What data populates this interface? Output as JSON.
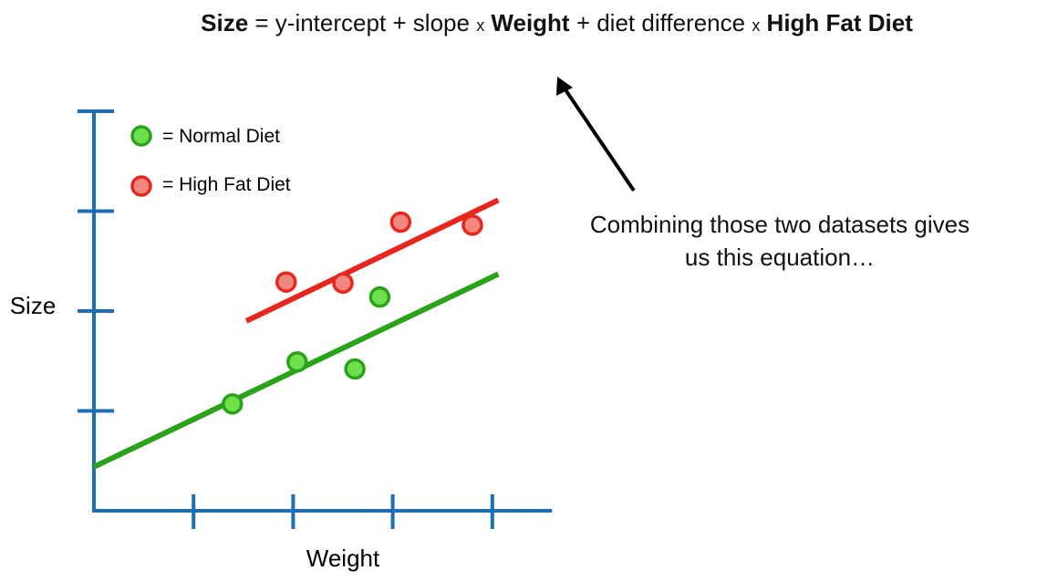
{
  "equation": {
    "parts": [
      {
        "text": "Size",
        "style": "bold"
      },
      {
        "text": " = y-intercept + slope ",
        "style": "normal"
      },
      {
        "text": "x",
        "style": "times"
      },
      {
        "text": " Weight",
        "style": "bold"
      },
      {
        "text": " + diet difference ",
        "style": "normal"
      },
      {
        "text": "x",
        "style": "times"
      },
      {
        "text": " High Fat Diet",
        "style": "bold"
      }
    ]
  },
  "annotation": {
    "line1": "Combining those two datasets gives",
    "line2": "us this equation…",
    "arrow_icon": "arrow-up-left"
  },
  "chart_data": {
    "type": "scatter",
    "title": "",
    "xlabel": "Weight",
    "ylabel": "Size",
    "xlim": [
      0,
      4.6
    ],
    "ylim": [
      0,
      4
    ],
    "x_ticks": [
      1,
      2,
      3,
      4
    ],
    "y_ticks": [
      1,
      2,
      3,
      4
    ],
    "tick_labels_shown": false,
    "grid": false,
    "axis_color": "#1f6db3",
    "legend": {
      "placement": "top-left",
      "entries": [
        "= Normal Diet",
        "= High Fat Diet"
      ]
    },
    "series": [
      {
        "name": "Normal Diet",
        "color": "#2aa21a",
        "fill": "#6fe04c",
        "points": [
          [
            1.39,
            1.07
          ],
          [
            2.04,
            1.49
          ],
          [
            2.62,
            1.42
          ],
          [
            2.87,
            2.14
          ]
        ],
        "fit_line": {
          "x": [
            0,
            4.06
          ],
          "y": [
            0.44,
            2.37
          ]
        }
      },
      {
        "name": "High Fat Diet",
        "color": "#e8261e",
        "fill": "#f08880",
        "points": [
          [
            1.93,
            2.29
          ],
          [
            2.5,
            2.28
          ],
          [
            3.08,
            2.89
          ],
          [
            3.8,
            2.86
          ]
        ],
        "fit_line": {
          "x": [
            1.53,
            4.06
          ],
          "y": [
            1.9,
            3.11
          ]
        }
      }
    ]
  }
}
